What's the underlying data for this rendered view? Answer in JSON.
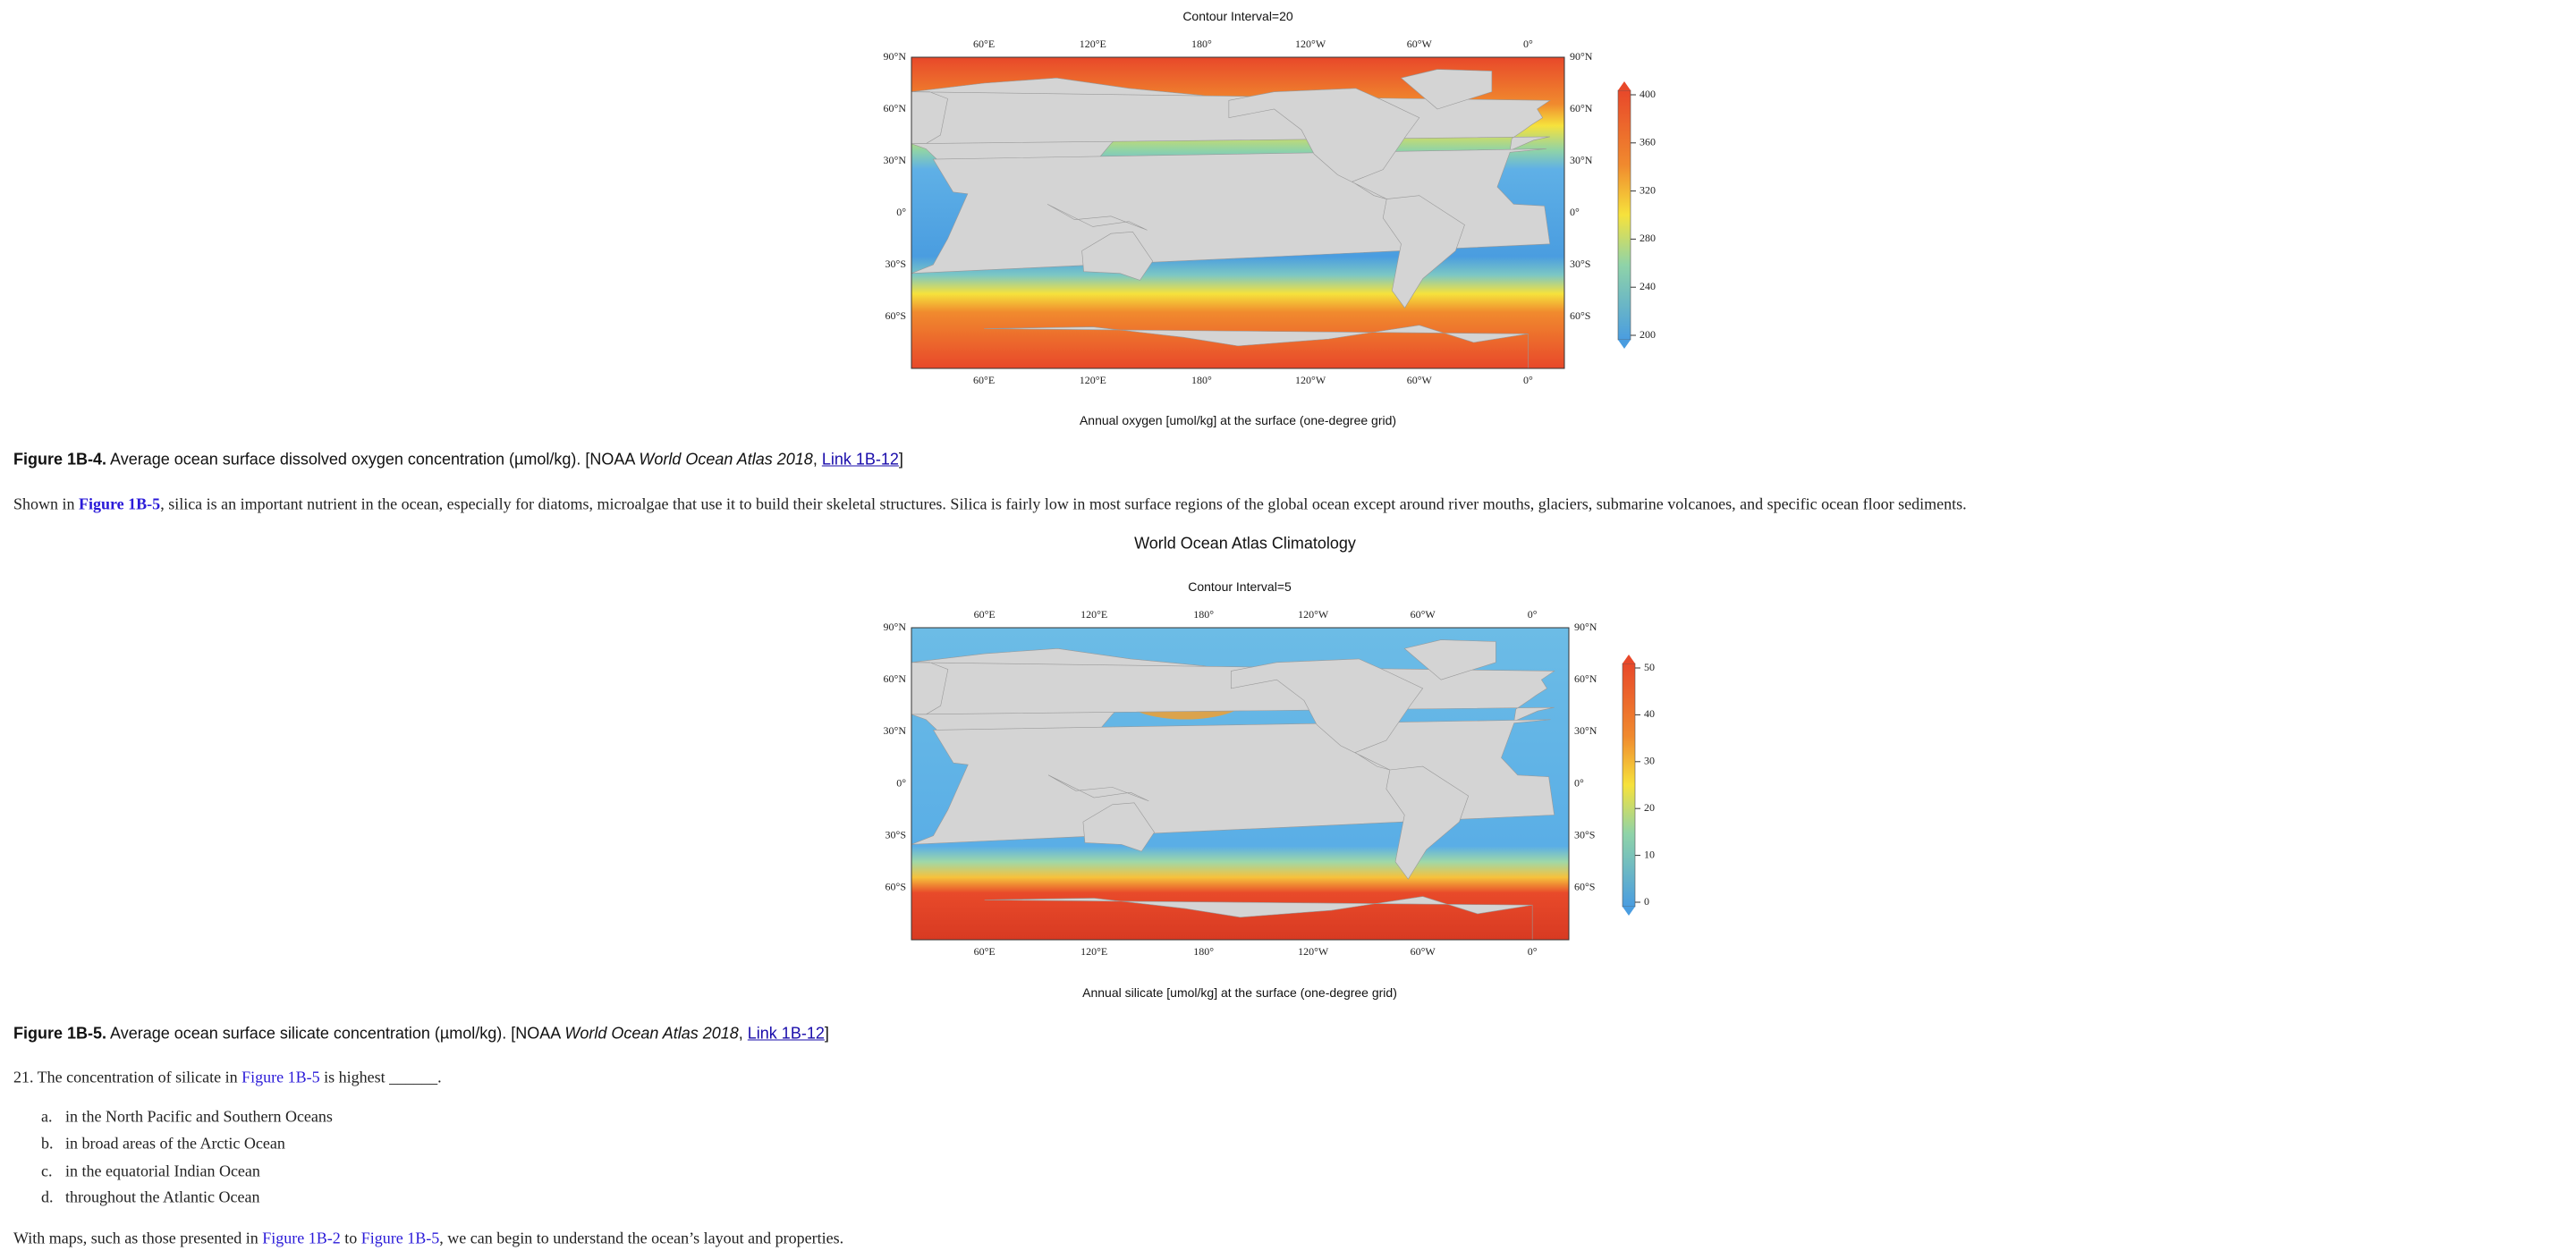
{
  "figure_4": {
    "contour_note": "Contour Interval=20",
    "lon_labels": [
      "60°E",
      "120°E",
      "180°",
      "120°W",
      "60°W",
      "0°"
    ],
    "lat_labels": [
      "90°N",
      "60°N",
      "30°N",
      "0°",
      "30°S",
      "60°S"
    ],
    "colorbar_ticks": [
      400,
      360,
      320,
      280,
      240,
      200
    ],
    "map_caption": "Annual oxygen [umol/kg] at the surface (one-degree grid)"
  },
  "caption_4": {
    "label": "Figure 1B-4.",
    "text": " Average ocean surface dissolved oxygen concentration (µmol/kg). [NOAA ",
    "source": "World Ocean Atlas 2018",
    "sep": ", ",
    "link": "Link 1B-12",
    "close": "]"
  },
  "paragraph_1": {
    "before": "Shown in ",
    "link": "Figure 1B-5",
    "after": ", silica is an important nutrient in the ocean, especially for diatoms, microalgae that use it to build their skeletal structures. Silica is fairly low in most surface regions of the global ocean except around river mouths, glaciers, submarine volcanoes, and specific ocean floor sediments."
  },
  "figure_5": {
    "title": "World Ocean Atlas Climatology",
    "contour_note": "Contour Interval=5",
    "lon_labels": [
      "60°E",
      "120°E",
      "180°",
      "120°W",
      "60°W",
      "0°"
    ],
    "lat_labels": [
      "90°N",
      "60°N",
      "30°N",
      "0°",
      "30°S",
      "60°S"
    ],
    "colorbar_ticks": [
      50,
      40,
      30,
      20,
      10,
      0
    ],
    "map_caption": "Annual silicate [umol/kg] at the surface (one-degree grid)"
  },
  "caption_5": {
    "label": "Figure 1B-5.",
    "text": " Average ocean surface silicate concentration (µmol/kg). [NOAA ",
    "source": "World Ocean Atlas 2018",
    "sep": ", ",
    "link": "Link 1B-12",
    "close": "]"
  },
  "question": {
    "before": "21. The concentration of silicate in ",
    "link": "Figure 1B-5",
    "after": " is highest ______.",
    "options": [
      {
        "letter": "a.",
        "text": "in the North Pacific and Southern Oceans"
      },
      {
        "letter": "b.",
        "text": "in broad areas of the Arctic Ocean"
      },
      {
        "letter": "c.",
        "text": "in the equatorial Indian Ocean"
      },
      {
        "letter": "d.",
        "text": "throughout the Atlantic Ocean"
      }
    ]
  },
  "closing": {
    "before": "With maps, such as those presented in ",
    "link_1": "Figure 1B-2",
    "middle": " to ",
    "link_2": "Figure 1B-5",
    "after": ", we can begin to understand the ocean’s layout and properties."
  }
}
